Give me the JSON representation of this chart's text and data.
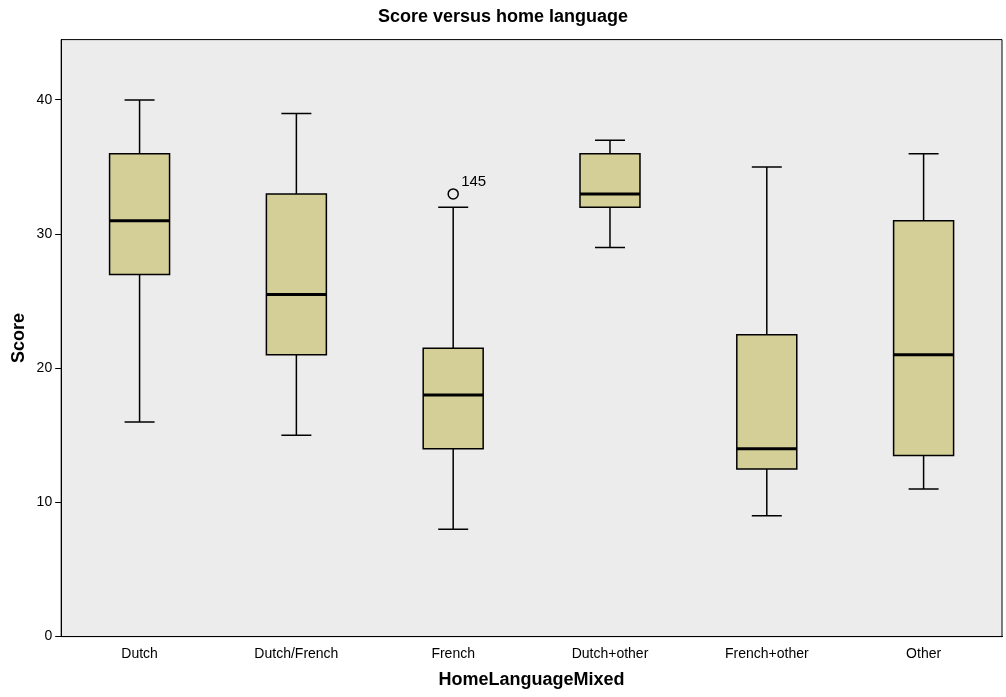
{
  "chart_data": {
    "type": "box",
    "title": "Score versus home language",
    "xlabel": "HomeLanguageMixed",
    "ylabel": "Score",
    "categories": [
      "Dutch",
      "Dutch/French",
      "French",
      "Dutch+other",
      "French+other",
      "Other"
    ],
    "color": "#d4cf97",
    "boxes": [
      {
        "low": 16,
        "q1": 27,
        "median": 31,
        "q3": 36,
        "high": 40
      },
      {
        "low": 15,
        "q1": 21,
        "median": 25.5,
        "q3": 33,
        "high": 39
      },
      {
        "low": 8,
        "q1": 14,
        "median": 18,
        "q3": 21.5,
        "high": 32,
        "outliers": [
          33
        ]
      },
      {
        "low": 29,
        "q1": 32,
        "median": 33,
        "q3": 36,
        "high": 37
      },
      {
        "low": 9,
        "q1": 12.5,
        "median": 14,
        "q3": 22.5,
        "high": 35
      },
      {
        "low": 11,
        "q1": 13.5,
        "median": 21,
        "q3": 31,
        "high": 36
      }
    ],
    "ylim": [
      0,
      44.5
    ],
    "yticks": [
      0,
      10,
      20,
      30,
      40
    ],
    "grid": false,
    "legend": false,
    "annotations": [
      "145"
    ]
  }
}
